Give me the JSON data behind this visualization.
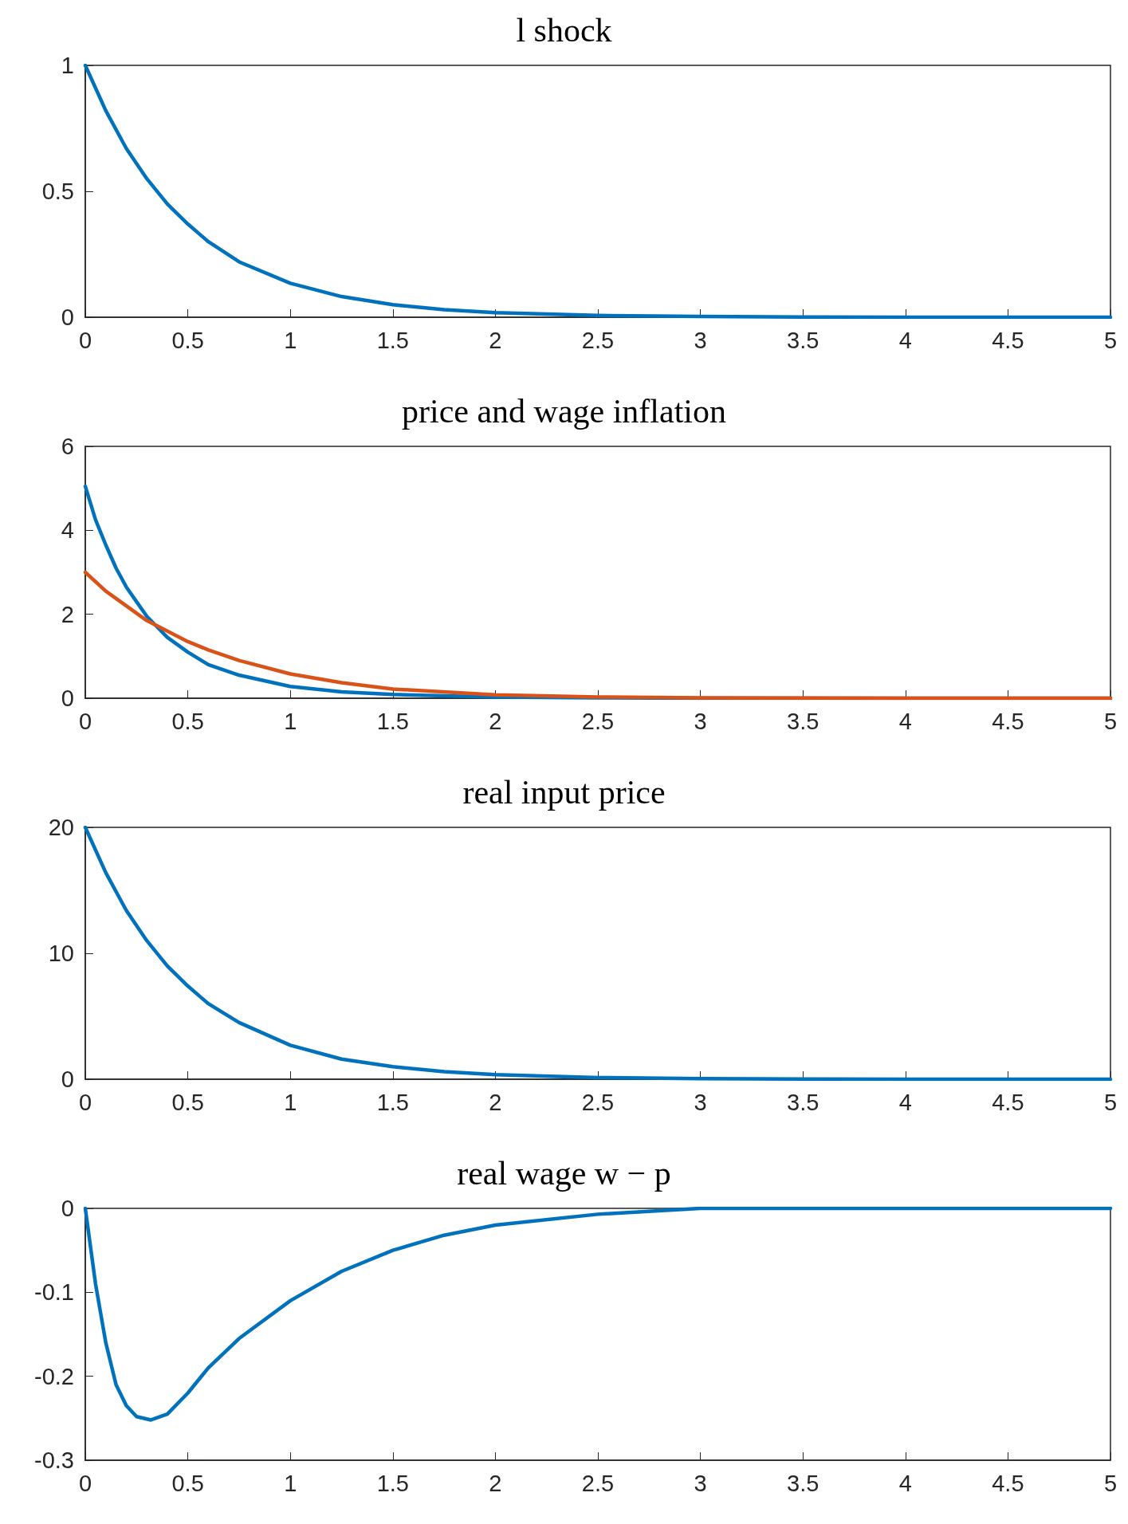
{
  "chart_data": [
    {
      "type": "line",
      "title": "l shock",
      "xlim": [
        0,
        5
      ],
      "xticks": [
        0,
        0.5,
        1,
        1.5,
        2,
        2.5,
        3,
        3.5,
        4,
        4.5,
        5
      ],
      "ylim": [
        0,
        1
      ],
      "yticks": [
        0,
        0.5,
        1
      ],
      "grid": false,
      "series": [
        {
          "color": "#0072bd",
          "x": [
            0,
            0.1,
            0.2,
            0.3,
            0.4,
            0.5,
            0.6,
            0.75,
            1,
            1.25,
            1.5,
            1.75,
            2,
            2.5,
            3,
            3.5,
            4,
            4.5,
            5
          ],
          "values": [
            1,
            0.82,
            0.67,
            0.55,
            0.45,
            0.37,
            0.3,
            0.22,
            0.135,
            0.082,
            0.05,
            0.03,
            0.018,
            0.007,
            0.003,
            0.001,
            0,
            0,
            0
          ]
        }
      ]
    },
    {
      "type": "line",
      "title": "price and wage inflation",
      "xlim": [
        0,
        5
      ],
      "xticks": [
        0,
        0.5,
        1,
        1.5,
        2,
        2.5,
        3,
        3.5,
        4,
        4.5,
        5
      ],
      "ylim": [
        0,
        6
      ],
      "yticks": [
        0,
        2,
        4,
        6
      ],
      "grid": false,
      "series": [
        {
          "color": "#0072bd",
          "x": [
            0,
            0.05,
            0.1,
            0.15,
            0.2,
            0.3,
            0.4,
            0.5,
            0.6,
            0.75,
            1,
            1.25,
            1.5,
            2,
            2.5,
            3,
            4,
            5
          ],
          "values": [
            5.05,
            4.25,
            3.65,
            3.1,
            2.65,
            1.95,
            1.45,
            1.1,
            0.8,
            0.55,
            0.28,
            0.15,
            0.09,
            0.03,
            0.01,
            0,
            0,
            0
          ]
        },
        {
          "color": "#d95319",
          "x": [
            0,
            0.1,
            0.2,
            0.3,
            0.4,
            0.5,
            0.6,
            0.75,
            1,
            1.25,
            1.5,
            2,
            2.5,
            3,
            4,
            5
          ],
          "values": [
            3,
            2.55,
            2.2,
            1.85,
            1.6,
            1.35,
            1.15,
            0.9,
            0.58,
            0.37,
            0.22,
            0.08,
            0.03,
            0.01,
            0,
            0
          ]
        }
      ]
    },
    {
      "type": "line",
      "title": "real input price",
      "xlim": [
        0,
        5
      ],
      "xticks": [
        0,
        0.5,
        1,
        1.5,
        2,
        2.5,
        3,
        3.5,
        4,
        4.5,
        5
      ],
      "ylim": [
        0,
        20
      ],
      "yticks": [
        0,
        10,
        20
      ],
      "grid": false,
      "series": [
        {
          "color": "#0072bd",
          "x": [
            0,
            0.1,
            0.2,
            0.3,
            0.4,
            0.5,
            0.6,
            0.75,
            1,
            1.25,
            1.5,
            1.75,
            2,
            2.5,
            3,
            3.5,
            4,
            4.5,
            5
          ],
          "values": [
            20,
            16.4,
            13.4,
            11,
            9,
            7.4,
            6,
            4.5,
            2.7,
            1.6,
            1,
            0.6,
            0.37,
            0.13,
            0.05,
            0.02,
            0,
            0,
            0
          ]
        }
      ]
    },
    {
      "type": "line",
      "title": "real wage w − p",
      "xlim": [
        0,
        5
      ],
      "xticks": [
        0,
        0.5,
        1,
        1.5,
        2,
        2.5,
        3,
        3.5,
        4,
        4.5,
        5
      ],
      "ylim": [
        -0.3,
        0
      ],
      "yticks": [
        -0.3,
        -0.2,
        -0.1,
        0
      ],
      "grid": false,
      "series": [
        {
          "color": "#0072bd",
          "x": [
            0,
            0.05,
            0.1,
            0.15,
            0.2,
            0.25,
            0.32,
            0.4,
            0.5,
            0.6,
            0.75,
            1,
            1.25,
            1.5,
            1.75,
            2,
            2.5,
            3,
            3.5,
            4,
            5
          ],
          "values": [
            0,
            -0.09,
            -0.16,
            -0.21,
            -0.235,
            -0.248,
            -0.252,
            -0.245,
            -0.22,
            -0.19,
            -0.155,
            -0.11,
            -0.075,
            -0.05,
            -0.032,
            -0.02,
            -0.007,
            0,
            0,
            0,
            0
          ]
        }
      ]
    }
  ]
}
